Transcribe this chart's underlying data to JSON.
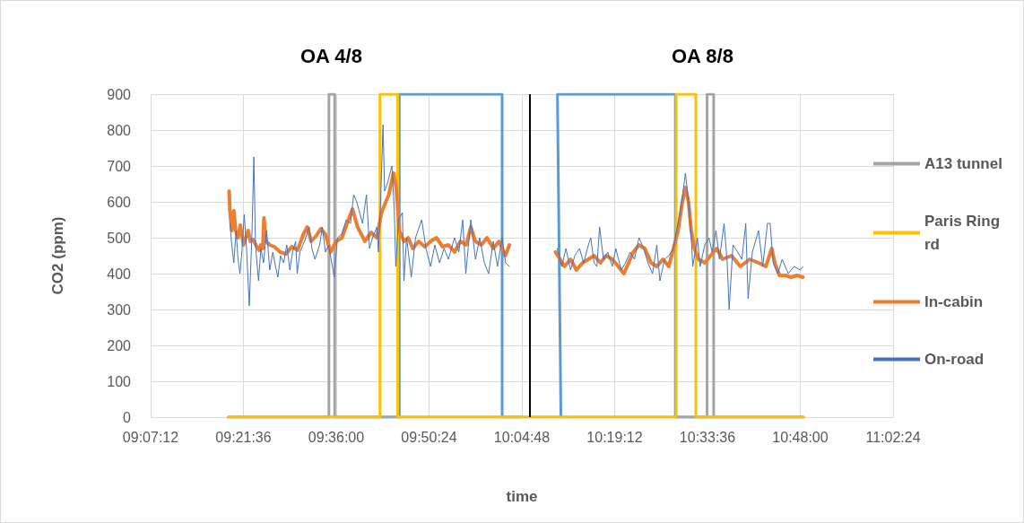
{
  "chart_data": {
    "type": "line",
    "xlabel": "time",
    "ylabel": "CO2 (ppm)",
    "annotations": [
      "OA 4/8",
      "OA 8/8"
    ],
    "xlim": [
      9.12,
      11.04
    ],
    "xticks": [
      {
        "value": 9.12,
        "label": "09:07:12"
      },
      {
        "value": 9.36,
        "label": "09:21:36"
      },
      {
        "value": 9.6,
        "label": "09:36:00"
      },
      {
        "value": 9.84,
        "label": "09:50:24"
      },
      {
        "value": 10.08,
        "label": "10:04:48"
      },
      {
        "value": 10.32,
        "label": "10:19:12"
      },
      {
        "value": 10.56,
        "label": "10:33:36"
      },
      {
        "value": 10.8,
        "label": "10:48:00"
      },
      {
        "value": 11.04,
        "label": "11:02:24"
      }
    ],
    "ylim": [
      0,
      900
    ],
    "yticks": [
      0,
      100,
      200,
      300,
      400,
      500,
      600,
      700,
      800,
      900
    ],
    "grid": true,
    "legend": "right",
    "marker": "none",
    "ref_lines": [
      {
        "axis": "x",
        "value": 10.1,
        "color": "#000000"
      }
    ],
    "series": [
      {
        "name": null,
        "color": "#5b9bd5",
        "x": [
          9.321,
          9.763,
          9.763,
          10.029,
          10.029,
          10.077,
          10.13,
          10.181,
          10.172,
          10.477,
          10.477,
          10.808
        ],
        "values": [
          0,
          0,
          900,
          900,
          0,
          0,
          null,
          0,
          900,
          900,
          0,
          0
        ]
      },
      {
        "name": "A13 tunnel",
        "color": "#a5a5a5",
        "x": [
          9.321,
          9.581,
          9.581,
          9.596,
          9.596,
          10.559,
          10.559,
          10.576,
          10.576,
          10.808
        ],
        "values": [
          0,
          0,
          900,
          900,
          0,
          0,
          900,
          900,
          0,
          0
        ]
      },
      {
        "name": "Paris Ring rd",
        "color": "#ffc000",
        "x": [
          9.321,
          9.713,
          9.713,
          9.759,
          9.759,
          10.479,
          10.479,
          10.53,
          10.53,
          10.808
        ],
        "values": [
          0,
          0,
          900,
          900,
          0,
          0,
          900,
          900,
          0,
          0
        ]
      },
      {
        "name": "In-cabin",
        "color": "#ed7d31",
        "x": [
          9.323,
          9.325,
          9.33,
          9.335,
          9.34,
          9.346,
          9.352,
          9.36,
          9.366,
          9.372,
          9.378,
          9.385,
          9.392,
          9.4,
          9.405,
          9.41,
          9.413,
          9.418,
          9.428,
          9.44,
          9.455,
          9.47,
          9.485,
          9.5,
          9.515,
          9.525,
          9.535,
          9.548,
          9.56,
          9.572,
          9.585,
          9.6,
          9.615,
          9.628,
          9.642,
          9.655,
          9.667,
          9.674,
          9.69,
          9.705,
          9.717,
          9.728,
          9.736,
          9.748,
          9.755,
          9.763,
          9.775,
          9.786,
          9.798,
          9.813,
          9.829,
          9.844,
          9.859,
          9.875,
          9.89,
          9.906,
          9.921,
          9.936,
          9.948,
          9.96,
          9.975,
          9.99,
          10.006,
          10.021,
          10.037,
          10.048,
          10.1,
          10.167,
          10.179,
          10.19,
          10.206,
          10.221,
          10.237,
          10.252,
          10.267,
          10.283,
          10.298,
          10.314,
          10.329,
          10.344,
          10.356,
          10.368,
          10.383,
          10.398,
          10.414,
          10.429,
          10.445,
          10.46,
          10.472,
          10.484,
          10.495,
          10.503,
          10.511,
          10.518,
          10.526,
          10.537,
          10.553,
          10.568,
          10.584,
          10.599,
          10.622,
          10.645,
          10.669,
          10.692,
          10.711,
          10.726,
          10.734,
          10.746,
          10.761,
          10.776,
          10.792,
          10.807
        ],
        "values": [
          630,
          575,
          520,
          575,
          520,
          500,
          535,
          480,
          500,
          520,
          490,
          495,
          480,
          465,
          480,
          470,
          555,
          490,
          480,
          475,
          460,
          455,
          475,
          465,
          510,
          530,
          490,
          505,
          525,
          510,
          460,
          490,
          500,
          540,
          580,
          530,
          505,
          490,
          515,
          500,
          570,
          600,
          620,
          680,
          640,
          520,
          490,
          500,
          470,
          490,
          475,
          490,
          500,
          475,
          480,
          460,
          490,
          480,
          530,
          490,
          480,
          500,
          470,
          490,
          450,
          480,
          null,
          460,
          440,
          420,
          440,
          410,
          430,
          440,
          450,
          430,
          450,
          440,
          420,
          400,
          430,
          460,
          480,
          470,
          430,
          420,
          440,
          420,
          470,
          520,
          600,
          640,
          600,
          520,
          470,
          440,
          430,
          450,
          470,
          440,
          450,
          420,
          440,
          430,
          420,
          470,
          430,
          395,
          395,
          390,
          395,
          390
        ]
      },
      {
        "name": "On-road",
        "color": "#4472c4",
        "x": [
          9.325,
          9.329,
          9.335,
          9.341,
          9.346,
          9.351,
          9.356,
          9.362,
          9.368,
          9.375,
          9.382,
          9.387,
          9.391,
          9.399,
          9.405,
          9.412,
          9.42,
          9.428,
          9.436,
          9.443,
          9.449,
          9.456,
          9.464,
          9.472,
          9.48,
          9.487,
          9.495,
          9.499,
          9.506,
          9.518,
          9.53,
          9.537,
          9.545,
          9.557,
          9.564,
          9.572,
          9.58,
          9.59,
          9.595,
          9.603,
          9.614,
          9.626,
          9.637,
          9.645,
          9.653,
          9.668,
          9.678,
          9.686,
          9.694,
          9.705,
          9.709,
          9.714,
          9.721,
          9.725,
          9.732,
          9.744,
          9.75,
          9.754,
          9.761,
          9.771,
          9.775,
          9.782,
          9.794,
          9.805,
          9.821,
          9.832,
          9.844,
          9.855,
          9.867,
          9.879,
          9.89,
          9.906,
          9.917,
          9.927,
          9.935,
          9.948,
          9.96,
          9.971,
          9.983,
          9.994,
          10.006,
          10.017,
          10.029,
          10.038,
          10.048,
          10.1,
          10.171,
          10.183,
          10.194,
          10.206,
          10.217,
          10.229,
          10.24,
          10.252,
          10.258,
          10.267,
          10.274,
          10.281,
          10.291,
          10.302,
          10.314,
          10.323,
          10.337,
          10.348,
          10.36,
          10.371,
          10.383,
          10.395,
          10.406,
          10.418,
          10.429,
          10.437,
          10.449,
          10.46,
          10.472,
          10.48,
          10.491,
          10.503,
          10.511,
          10.518,
          10.522,
          10.534,
          10.541,
          10.553,
          10.564,
          10.572,
          10.582,
          10.591,
          10.603,
          10.611,
          10.616,
          10.626,
          10.638,
          10.649,
          10.659,
          10.665,
          10.676,
          10.692,
          10.703,
          10.715,
          10.722,
          10.73,
          10.742,
          10.753,
          10.769,
          10.784,
          10.8,
          10.807
        ],
        "values": [
          540,
          490,
          430,
          520,
          440,
          400,
          460,
          565,
          470,
          310,
          510,
          725,
          480,
          380,
          470,
          430,
          520,
          410,
          460,
          420,
          390,
          450,
          430,
          480,
          410,
          460,
          490,
          400,
          460,
          490,
          530,
          470,
          440,
          480,
          530,
          460,
          480,
          420,
          390,
          500,
          510,
          550,
          540,
          620,
          600,
          540,
          620,
          470,
          500,
          530,
          460,
          580,
          815,
          630,
          650,
          700,
          580,
          420,
          550,
          570,
          380,
          500,
          390,
          500,
          550,
          470,
          420,
          480,
          430,
          470,
          440,
          500,
          460,
          550,
          400,
          550,
          440,
          500,
          430,
          400,
          490,
          420,
          500,
          430,
          420,
          null,
          470,
          420,
          470,
          410,
          450,
          470,
          430,
          480,
          500,
          430,
          420,
          530,
          440,
          460,
          420,
          470,
          410,
          430,
          460,
          440,
          500,
          470,
          430,
          400,
          480,
          380,
          440,
          450,
          470,
          520,
          580,
          680,
          600,
          500,
          420,
          500,
          420,
          480,
          500,
          460,
          520,
          440,
          540,
          430,
          300,
          480,
          460,
          440,
          540,
          330,
          460,
          520,
          420,
          540,
          540,
          430,
          400,
          440,
          400,
          420,
          410,
          420
        ]
      }
    ]
  }
}
